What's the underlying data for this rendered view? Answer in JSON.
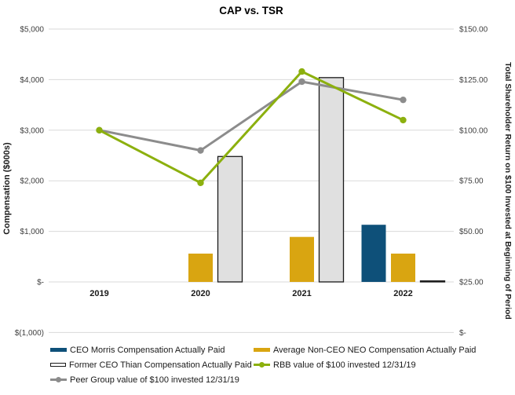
{
  "title": "CAP vs. TSR",
  "left_axis": {
    "label": "Compensation ($000s)",
    "ticks": [
      {
        "label": "$5,000",
        "value": 5000
      },
      {
        "label": "$4,000",
        "value": 4000
      },
      {
        "label": "$3,000",
        "value": 3000
      },
      {
        "label": "$2,000",
        "value": 2000
      },
      {
        "label": "$1,000",
        "value": 1000
      },
      {
        "label": "$-",
        "value": 0
      },
      {
        "label": "$(1,000)",
        "value": -1000
      }
    ]
  },
  "right_axis": {
    "label": "Total Shareholder Return on $100 Invested at Beginning of Period",
    "ticks": [
      {
        "label": "$150.00",
        "value": 150
      },
      {
        "label": "$125.00",
        "value": 125
      },
      {
        "label": "$100.00",
        "value": 100
      },
      {
        "label": "$75.00",
        "value": 75
      },
      {
        "label": "$50.00",
        "value": 50
      },
      {
        "label": "$25.00",
        "value": 25
      },
      {
        "label": "$-",
        "value": 0
      }
    ]
  },
  "chart_data": {
    "type": "bar+line combo",
    "categories": [
      "2019",
      "2020",
      "2021",
      "2022"
    ],
    "bar_series": [
      {
        "name": "CEO Morris Compensation Actually Paid",
        "axis": "left",
        "color": "#0E5079",
        "values": [
          0,
          0,
          0,
          1130
        ]
      },
      {
        "name": "Average Non-CEO NEO Compensation Actually Paid",
        "axis": "left",
        "color": "#D9A511",
        "values": [
          0,
          560,
          890,
          560
        ]
      },
      {
        "name": "Former CEO Thian Compensation Actually Paid",
        "axis": "left",
        "color": "#E0E0E0",
        "border": "#1A1A1A",
        "values": [
          0,
          2480,
          4040,
          20
        ]
      }
    ],
    "line_series": [
      {
        "name": "RBB value of $100 invested 12/31/19",
        "axis": "right",
        "color": "#8CB00E",
        "values": [
          100,
          74,
          129,
          105
        ]
      },
      {
        "name": "Peer Group value of $100 invested 12/31/19",
        "axis": "right",
        "color": "#8C8C8C",
        "values": [
          100,
          90,
          124,
          115
        ]
      }
    ],
    "title": "CAP vs. TSR",
    "xlabel": "",
    "ylabel_left": "Compensation ($000s)",
    "ylabel_right": "Total Shareholder Return on $100 Invested at Beginning of Period",
    "left_ylim": [
      -1000,
      5000
    ],
    "right_ylim": [
      0,
      150
    ],
    "grid": true,
    "gridline_color": "#D9D9D9",
    "legend_position": "bottom"
  },
  "legend": {
    "col1": [
      {
        "label": "CEO Morris Compensation Actually Paid",
        "type": "bar",
        "color": "#0E5079"
      },
      {
        "label": "Former CEO Thian Compensation Actually Paid",
        "type": "bar-outline",
        "color": "#FFFFFF",
        "border": "#1A1A1A"
      },
      {
        "label": "Peer Group value of $100 invested 12/31/19",
        "type": "line",
        "color": "#8C8C8C"
      }
    ],
    "col2": [
      {
        "label": "Average Non-CEO NEO Compensation Actually Paid",
        "type": "bar",
        "color": "#D9A511"
      },
      {
        "label": "RBB value of $100 invested 12/31/19",
        "type": "line",
        "color": "#8CB00E"
      }
    ]
  },
  "text_colors": {
    "tick": "#3F3F3F",
    "category": "#1A1A1A"
  }
}
